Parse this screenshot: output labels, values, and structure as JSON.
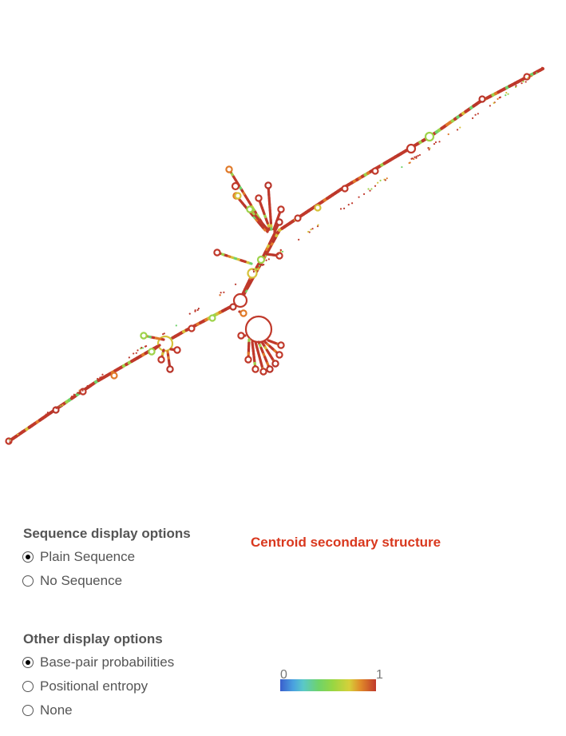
{
  "figure": {
    "name": "rna-secondary-structure",
    "colors": {
      "low": "#3a5fcd",
      "mid": "#6fd36a",
      "high": "#c0392b"
    }
  },
  "sequence_options": {
    "title": "Sequence display options",
    "options": [
      {
        "label": "Plain Sequence",
        "checked": true
      },
      {
        "label": "No Sequence",
        "checked": false
      }
    ]
  },
  "other_options": {
    "title": "Other display options",
    "options": [
      {
        "label": "Base-pair probabilities",
        "checked": true
      },
      {
        "label": "Positional entropy",
        "checked": false
      },
      {
        "label": "None",
        "checked": false
      }
    ]
  },
  "structure_title": "Centroid secondary structure",
  "scale": {
    "min": "0",
    "max": "1"
  }
}
